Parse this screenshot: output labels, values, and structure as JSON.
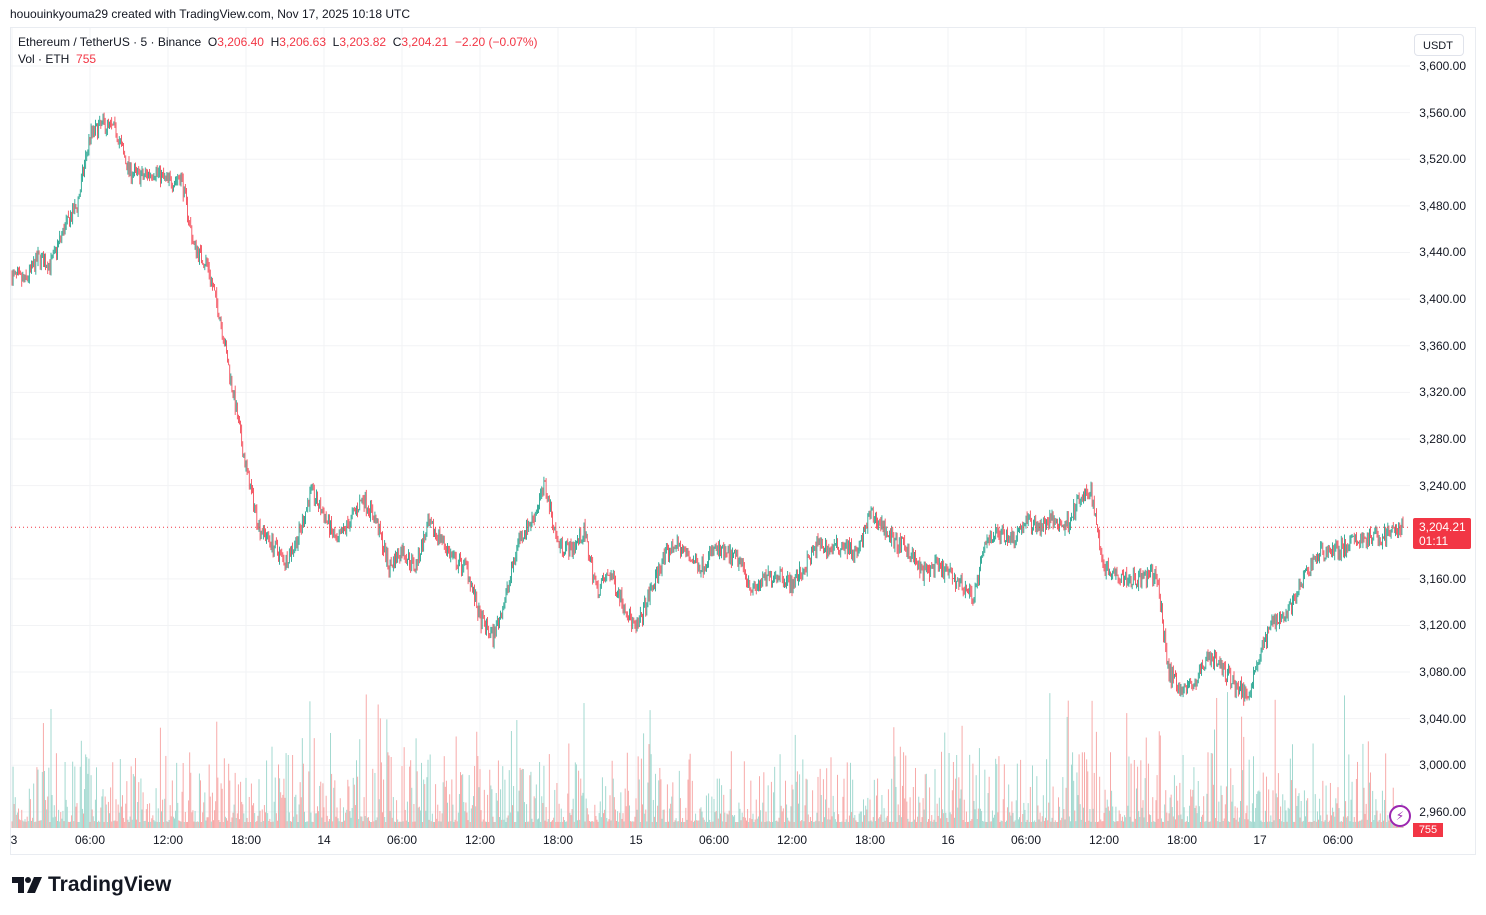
{
  "credit": "hououinkyouma29 created with TradingView.com, Nov 17, 2025 10:18 UTC",
  "legend": {
    "symbol": "Ethereum / TetherUS · 5 · Binance",
    "o_label": "O",
    "o": "3,206.40",
    "h_label": "H",
    "h": "3,206.63",
    "l_label": "L",
    "l": "3,203.82",
    "c_label": "C",
    "c": "3,204.21",
    "change": "−2.20 (−0.07%)",
    "vol_label": "Vol · ETH",
    "vol": "755"
  },
  "price_axis": {
    "unit": "USDT",
    "labels": [
      "3,600.00",
      "3,560.00",
      "3,520.00",
      "3,480.00",
      "3,440.00",
      "3,400.00",
      "3,360.00",
      "3,320.00",
      "3,280.00",
      "3,240.00",
      "3,160.00",
      "3,120.00",
      "3,080.00",
      "3,040.00",
      "3,000.00",
      "2,960.00"
    ],
    "last_price": "3,204.21",
    "countdown": "01:11",
    "last_volume": "755"
  },
  "time_axis": [
    "3",
    "06:00",
    "12:00",
    "18:00",
    "14",
    "06:00",
    "12:00",
    "18:00",
    "15",
    "06:00",
    "12:00",
    "18:00",
    "16",
    "06:00",
    "12:00",
    "18:00",
    "17",
    "06:00"
  ],
  "colors": {
    "up": "#089981",
    "down": "#f23645",
    "vol_up": "#a3d9d0",
    "vol_down": "#f7aaa9",
    "grid": "#f2f3f5"
  },
  "logo": "TradingView",
  "chart_data": {
    "type": "candlestick",
    "interval": "5",
    "x_unit": "hours from Nov 13 00:00 UTC (hourly sampled closes)",
    "ylim": [
      2960,
      3600
    ],
    "closes_hourly": [
      3420,
      3415,
      3435,
      3430,
      3460,
      3480,
      3540,
      3550,
      3545,
      3510,
      3505,
      3510,
      3500,
      3505,
      3445,
      3430,
      3385,
      3320,
      3255,
      3205,
      3190,
      3175,
      3195,
      3235,
      3215,
      3190,
      3210,
      3230,
      3210,
      3170,
      3185,
      3170,
      3205,
      3195,
      3175,
      3170,
      3125,
      3110,
      3145,
      3195,
      3210,
      3240,
      3190,
      3185,
      3200,
      3150,
      3165,
      3140,
      3115,
      3145,
      3175,
      3190,
      3180,
      3170,
      3185,
      3180,
      3175,
      3150,
      3160,
      3165,
      3155,
      3170,
      3190,
      3185,
      3190,
      3180,
      3215,
      3205,
      3190,
      3185,
      3165,
      3170,
      3165,
      3155,
      3145,
      3195,
      3200,
      3195,
      3210,
      3205,
      3210,
      3205,
      3225,
      3235,
      3170,
      3165,
      3160,
      3160,
      3165,
      3080,
      3065,
      3070,
      3095,
      3085,
      3070,
      3060,
      3095,
      3125,
      3130,
      3150,
      3175,
      3185,
      3185,
      3190,
      3195,
      3195,
      3200,
      3204.21
    ]
  }
}
